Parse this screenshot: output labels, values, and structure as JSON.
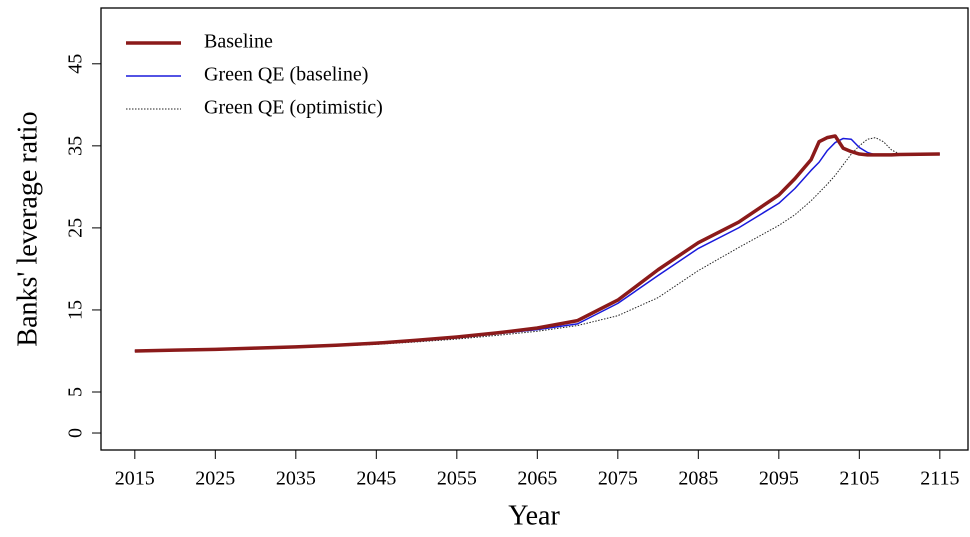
{
  "chart_data": {
    "type": "line",
    "xlabel": "Year",
    "ylabel": "Banks' leverage ratio",
    "x": [
      2015,
      2020,
      2025,
      2030,
      2035,
      2040,
      2045,
      2050,
      2055,
      2060,
      2065,
      2070,
      2075,
      2080,
      2085,
      2090,
      2095,
      2097,
      2099,
      2100,
      2101,
      2102,
      2103,
      2104,
      2105,
      2106,
      2107,
      2108,
      2109,
      2110,
      2115
    ],
    "series": [
      {
        "name": "Baseline",
        "color": "#8b1a1a",
        "width": 3.5,
        "dash": "none",
        "values": [
          10.0,
          10.1,
          10.2,
          10.35,
          10.5,
          10.7,
          10.95,
          11.3,
          11.7,
          12.2,
          12.8,
          13.7,
          16.2,
          19.9,
          23.2,
          25.7,
          29.0,
          31.0,
          33.3,
          35.5,
          36.0,
          36.2,
          34.7,
          34.3,
          34.0,
          33.9,
          33.9,
          33.9,
          33.9,
          33.95,
          34.0
        ]
      },
      {
        "name": "Green QE (baseline)",
        "color": "#1a1adc",
        "width": 1.5,
        "dash": "none",
        "values": [
          10.0,
          10.1,
          10.2,
          10.35,
          10.5,
          10.65,
          10.9,
          11.2,
          11.6,
          12.1,
          12.6,
          13.3,
          15.8,
          19.2,
          22.5,
          25.0,
          28.0,
          29.8,
          32.0,
          33.0,
          34.4,
          35.4,
          35.9,
          35.8,
          34.8,
          34.2,
          33.9,
          33.9,
          33.9,
          33.95,
          34.0
        ]
      },
      {
        "name": "Green QE (optimistic)",
        "color": "#222222",
        "width": 1,
        "dash": "1.5,1.5",
        "values": [
          10.0,
          10.1,
          10.2,
          10.3,
          10.45,
          10.6,
          10.8,
          11.1,
          11.45,
          11.9,
          12.4,
          13.1,
          14.3,
          16.5,
          19.8,
          22.6,
          25.3,
          26.6,
          28.3,
          29.3,
          30.3,
          31.4,
          32.7,
          34.0,
          35.0,
          35.8,
          36.0,
          35.5,
          34.5,
          34.0,
          34.1
        ]
      }
    ],
    "xlim": [
      2010.8,
      2118.5
    ],
    "xticks": [
      2015,
      2025,
      2035,
      2045,
      2055,
      2065,
      2075,
      2085,
      2095,
      2105,
      2115
    ],
    "ylim": [
      -2.07,
      51.8
    ],
    "yticks": [
      0,
      5,
      15,
      25,
      35,
      45
    ],
    "grid": false,
    "legend": "top-left"
  }
}
